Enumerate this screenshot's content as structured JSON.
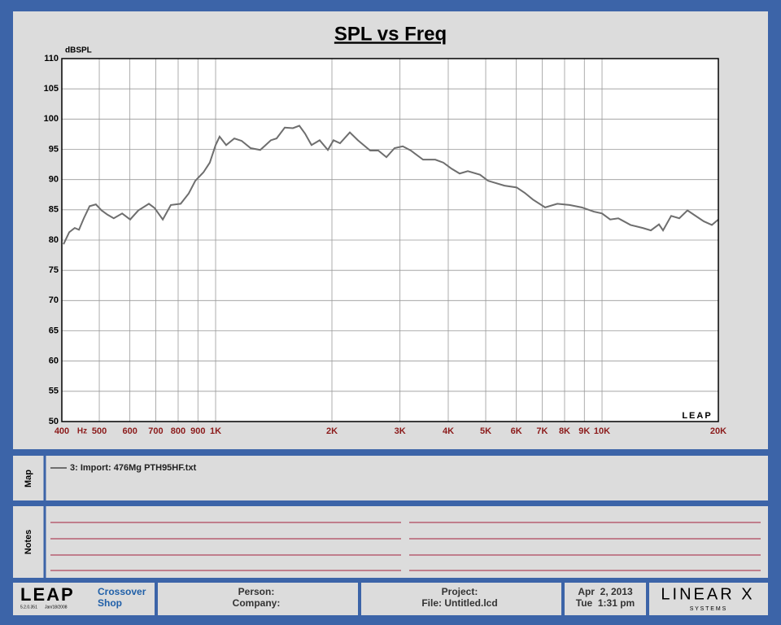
{
  "chart_data": {
    "type": "line",
    "title": "SPL vs Freq",
    "y_label": "dBSPL",
    "x_unit": "Hz",
    "watermark": "LEAP",
    "x_log": true,
    "grid": true,
    "xlim": [
      400,
      20000
    ],
    "ylim": [
      50,
      110
    ],
    "xticks": [
      400,
      500,
      600,
      700,
      800,
      900,
      {
        "value": 1000,
        "label": "1K"
      },
      {
        "value": 2000,
        "label": "2K"
      },
      {
        "value": 3000,
        "label": "3K"
      },
      {
        "value": 4000,
        "label": "4K"
      },
      {
        "value": 5000,
        "label": "5K"
      },
      {
        "value": 6000,
        "label": "6K"
      },
      {
        "value": 7000,
        "label": "7K"
      },
      {
        "value": 8000,
        "label": "8K"
      },
      {
        "value": 9000,
        "label": "9K"
      },
      {
        "value": 10000,
        "label": "10K"
      },
      {
        "value": 20000,
        "label": "20K"
      }
    ],
    "yticks": [
      50,
      55,
      60,
      65,
      70,
      75,
      80,
      85,
      90,
      95,
      100,
      105,
      110
    ],
    "x": [
      404,
      418,
      432,
      443,
      456,
      472,
      490,
      507,
      525,
      545,
      573,
      601,
      631,
      672,
      695,
      730,
      766,
      812,
      852,
      886,
      930,
      966,
      1000,
      1024,
      1065,
      1118,
      1168,
      1232,
      1305,
      1390,
      1438,
      1510,
      1585,
      1647,
      1704,
      1771,
      1859,
      1952,
      2019,
      2099,
      2225,
      2335,
      2512,
      2637,
      2767,
      2905,
      3050,
      3201,
      3442,
      3702,
      3885,
      4079,
      4281,
      4494,
      4832,
      5072,
      5591,
      6012,
      6311,
      6623,
      7124,
      7660,
      8239,
      8860,
      9526,
      10001,
      10497,
      11018,
      11850,
      12746,
      13377,
      14040,
      14384,
      15098,
      15847,
      16635,
      17462,
      18334,
      19240,
      20000
    ],
    "series": [
      {
        "name": "3: Import: 476Mg PTH95HF.txt",
        "color": "#6e6e6e",
        "values": [
          79.3,
          81.3,
          82,
          81.7,
          83.6,
          85.6,
          85.9,
          84.9,
          84.2,
          83.6,
          84.4,
          83.4,
          84.9,
          86,
          85.3,
          83.4,
          85.8,
          86,
          87.7,
          89.8,
          91.2,
          92.8,
          95.7,
          97.1,
          95.7,
          96.8,
          96.4,
          95.2,
          94.9,
          96.5,
          96.8,
          98.6,
          98.5,
          98.9,
          97.6,
          95.7,
          96.5,
          94.9,
          96.5,
          96,
          97.8,
          96.5,
          94.8,
          94.8,
          93.7,
          95.2,
          95.5,
          94.8,
          93.3,
          93.3,
          92.8,
          91.8,
          91,
          91.4,
          90.8,
          89.8,
          89,
          88.7,
          87.8,
          86.7,
          85.4,
          86,
          85.8,
          85.4,
          84.7,
          84.4,
          83.4,
          83.6,
          82.5,
          82,
          81.6,
          82.6,
          81.6,
          84,
          83.6,
          84.9,
          84,
          83.1,
          82.5,
          83.4
        ]
      }
    ]
  },
  "map": {
    "label": "Map"
  },
  "notes": {
    "label": "Notes"
  },
  "footer": {
    "logo": "LEAP",
    "version": "5.2.0.351",
    "build_date": "Jan/18/2008",
    "company_name": "Crossover",
    "company_name_2": "Shop",
    "person": "Person:",
    "company": "Company:",
    "project": "Project:",
    "file": "File: Untitled.lcd",
    "date": "Apr  2, 2013",
    "time": "Tue  1:31 pm",
    "brand": "LINEAR X",
    "brand_sub": "S Y S T E M S"
  }
}
